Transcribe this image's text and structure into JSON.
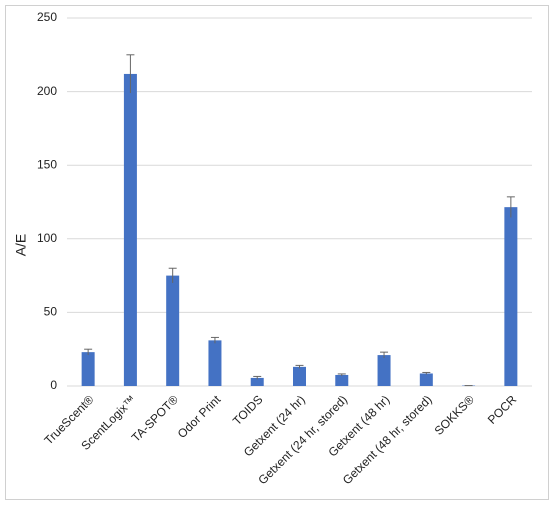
{
  "chart_data": {
    "type": "bar",
    "y_label": "A/E",
    "categories": [
      "TrueScent®",
      "ScentLogix™",
      "TA-SPOT®",
      "Odor Print",
      "TOIDS",
      "Getxent (24 hr)",
      "Getxent (24 hr, stored)",
      "Getxent (48 hr)",
      "Getxent (48 hr, stored)",
      "SOKKS®",
      "POCR"
    ],
    "values": [
      23,
      212,
      75,
      31,
      5.5,
      13,
      7.5,
      21,
      8.5,
      0.3,
      121.5
    ],
    "errors": [
      2,
      13,
      5,
      2,
      1,
      1,
      0.7,
      2,
      0.7,
      0,
      7
    ],
    "color": "#4472c4",
    "error_color": "#666666",
    "ylim": [
      0,
      250
    ],
    "yticks": [
      0,
      50,
      100,
      150,
      200,
      250
    ],
    "grid": true
  }
}
